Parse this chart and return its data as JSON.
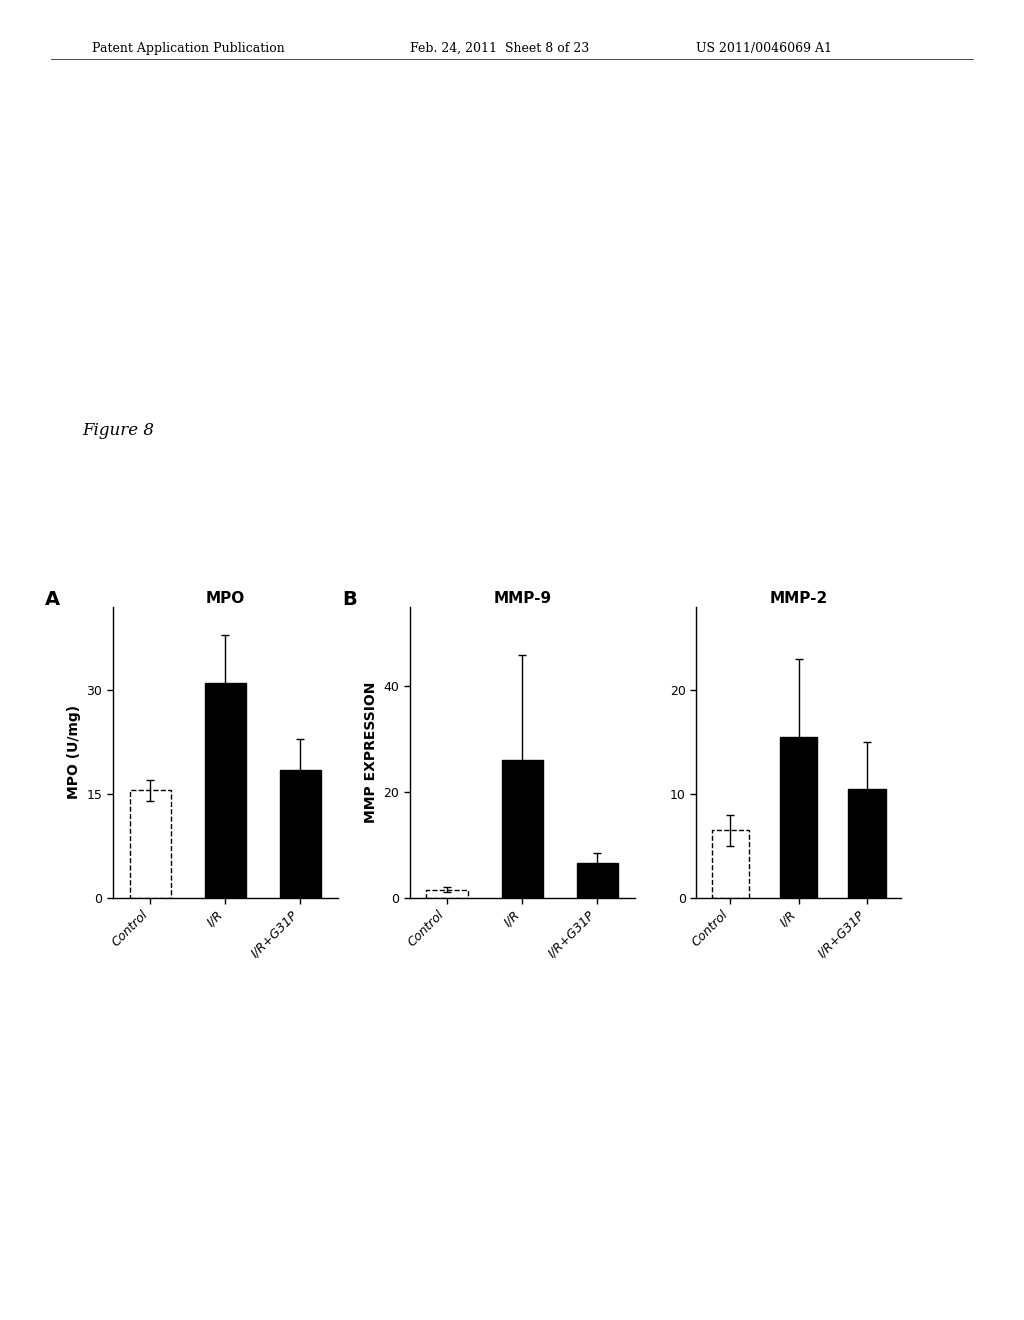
{
  "figure_label": "Figure 8",
  "header_line1": "Patent Application Publication",
  "header_line2": "Feb. 24, 2011  Sheet 8 of 23",
  "header_line3": "US 2011/0046069 A1",
  "panel_A": {
    "title": "MPO",
    "label": "A",
    "ylabel": "MPO (U/mg)",
    "categories": [
      "Control",
      "I/R",
      "I/R+G31P"
    ],
    "values": [
      15.5,
      31.0,
      18.5
    ],
    "errors": [
      1.5,
      7.0,
      4.5
    ],
    "bar_colors": [
      "white",
      "black",
      "black"
    ],
    "ylim": [
      0,
      42
    ],
    "yticks": [
      0,
      15,
      30
    ]
  },
  "panel_B_MMP9": {
    "title": "MMP-9",
    "label": "B",
    "ylabel": "MMP EXPRESSION",
    "categories": [
      "Control",
      "I/R",
      "I/R+G31P"
    ],
    "values": [
      1.5,
      26.0,
      6.5
    ],
    "errors": [
      0.5,
      20.0,
      2.0
    ],
    "bar_colors": [
      "white",
      "black",
      "black"
    ],
    "ylim": [
      0,
      55
    ],
    "yticks": [
      0,
      20,
      40
    ]
  },
  "panel_B_MMP2": {
    "title": "MMP-2",
    "categories": [
      "Control",
      "I/R",
      "I/R+G31P"
    ],
    "values": [
      6.5,
      15.5,
      10.5
    ],
    "errors": [
      1.5,
      7.5,
      4.5
    ],
    "bar_colors": [
      "white",
      "black",
      "black"
    ],
    "ylim": [
      0,
      28
    ],
    "yticks": [
      0,
      10,
      20
    ]
  },
  "bg_color": "white",
  "tick_label_fontsize": 9,
  "axis_label_fontsize": 10,
  "title_fontsize": 11,
  "panel_label_fontsize": 14,
  "figure_label_fontsize": 12
}
